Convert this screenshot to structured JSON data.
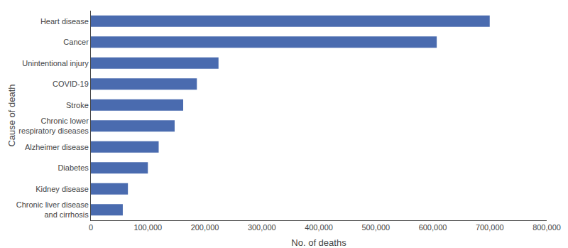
{
  "chart_data": {
    "type": "bar",
    "orientation": "horizontal",
    "categories": [
      "Chronic liver disease\nand cirrhosis",
      "Kidney disease",
      "Diabetes",
      "Alzheimer disease",
      "Chronic lower\nrespiratory diseases",
      "Stroke",
      "COVID-19",
      "Unintentional injury",
      "Cancer",
      "Heart disease"
    ],
    "values": [
      56000,
      65000,
      100000,
      119000,
      147000,
      162000,
      186000,
      224000,
      607000,
      700000
    ],
    "color": "#4a6baf",
    "xlabel": "No. of deaths",
    "ylabel": "Cause of death",
    "xlim": [
      0,
      800000
    ],
    "xticks": [
      0,
      {
        "value": 100000,
        "label": "100,000"
      },
      {
        "value": 200000,
        "label": "200,000"
      },
      {
        "value": 300000,
        "label": "300,000"
      },
      {
        "value": 400000,
        "label": "400,000"
      },
      {
        "value": 500000,
        "label": "500,000"
      },
      {
        "value": 600000,
        "label": "600,000"
      },
      {
        "value": 700000,
        "label": "700,000"
      },
      {
        "value": 800000,
        "label": "800,000"
      }
    ],
    "grid": false
  }
}
